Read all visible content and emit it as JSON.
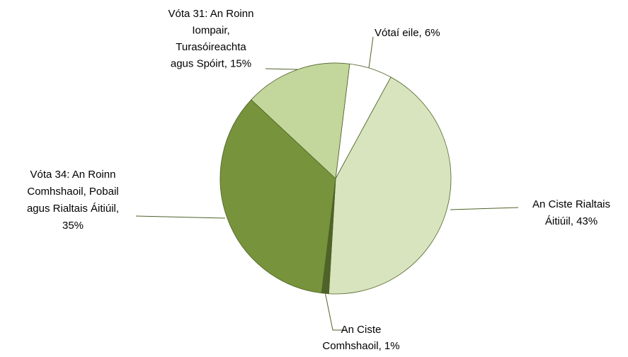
{
  "chart_data": {
    "type": "pie",
    "values": [
      6,
      43,
      1,
      35,
      15
    ],
    "value_labels": [
      [
        "Vótaí eile, 6%"
      ],
      [
        "An Ciste Rialtais",
        "Áitiúil, 43%"
      ],
      [
        "An Ciste",
        "Comhshaoil, 1%"
      ],
      [
        "Vóta 34: An Roinn",
        "Comhshaoil, Pobail",
        "agus Rialtais Áitiúil,",
        "35%"
      ],
      [
        "Vóta 31: An Roinn",
        "Iompair,",
        "Turasóireachta",
        "agus Spóirt, 15%"
      ]
    ],
    "colors": [
      "#ffffff",
      "#d7e4bd",
      "#4f6228",
      "#77933c",
      "#c3d69b"
    ]
  }
}
